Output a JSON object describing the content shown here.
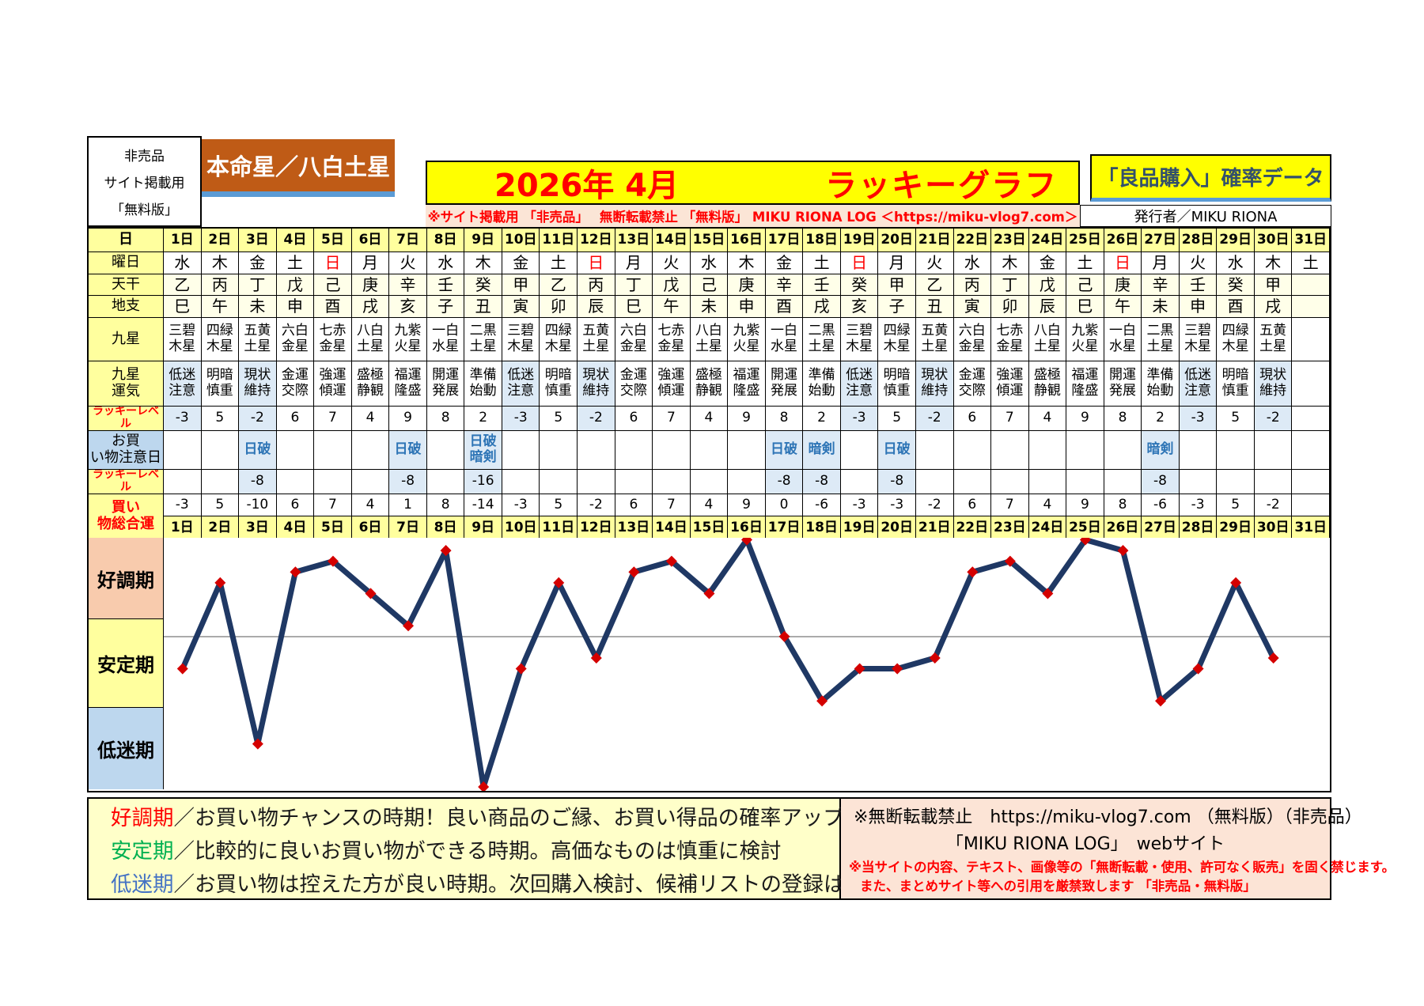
{
  "header": {
    "left_box_lines": [
      "非売品",
      "サイト掲載用",
      "「無料版」"
    ],
    "honmeisei": "本命星／八白土星",
    "title_date": "2026年 4月",
    "title_main": "ラッキーグラフ",
    "right_box": "「良品購入」確率データ",
    "disclaimer": "※サイト掲載用 「非売品」　 無断転載禁止 「無料版」 MIKU RIONA LOG ＜https://miku-vlog7.com＞",
    "publisher": "発行者／MIKU RIONA"
  },
  "table": {
    "row_labels": {
      "day": "日",
      "weekday": "曜日",
      "tenkan": "天干",
      "chishi": "地支",
      "kyusei": "九星",
      "kyusei_unki": "九星運気",
      "lucky_level": "ラッキーレベル",
      "caution": "お買い物注意日",
      "lucky_level2": "ラッキーレベル",
      "total": "買い物総合運"
    },
    "days": [
      "1日",
      "2日",
      "3日",
      "4日",
      "5日",
      "6日",
      "7日",
      "8日",
      "9日",
      "10日",
      "11日",
      "12日",
      "13日",
      "14日",
      "15日",
      "16日",
      "17日",
      "18日",
      "19日",
      "20日",
      "21日",
      "22日",
      "23日",
      "24日",
      "25日",
      "26日",
      "27日",
      "28日",
      "29日",
      "30日",
      "31日"
    ],
    "weekdays": [
      "水",
      "木",
      "金",
      "土",
      "日",
      "月",
      "火",
      "水",
      "木",
      "金",
      "土",
      "日",
      "月",
      "火",
      "水",
      "木",
      "金",
      "土",
      "日",
      "月",
      "火",
      "水",
      "木",
      "金",
      "土",
      "日",
      "月",
      "火",
      "水",
      "木",
      "土"
    ],
    "tenkan": [
      "乙",
      "丙",
      "丁",
      "戊",
      "己",
      "庚",
      "辛",
      "壬",
      "癸",
      "甲",
      "乙",
      "丙",
      "丁",
      "戊",
      "己",
      "庚",
      "辛",
      "壬",
      "癸",
      "甲",
      "乙",
      "丙",
      "丁",
      "戊",
      "己",
      "庚",
      "辛",
      "壬",
      "癸",
      "甲",
      ""
    ],
    "chishi": [
      "巳",
      "午",
      "未",
      "申",
      "酉",
      "戌",
      "亥",
      "子",
      "丑",
      "寅",
      "卯",
      "辰",
      "巳",
      "午",
      "未",
      "申",
      "酉",
      "戌",
      "亥",
      "子",
      "丑",
      "寅",
      "卯",
      "辰",
      "巳",
      "午",
      "未",
      "申",
      "酉",
      "戌",
      ""
    ],
    "kyusei": [
      "三碧木星",
      "四緑木星",
      "五黄土星",
      "六白金星",
      "七赤金星",
      "八白土星",
      "九紫火星",
      "一白水星",
      "二黒土星",
      "三碧木星",
      "四緑木星",
      "五黄土星",
      "六白金星",
      "七赤金星",
      "八白土星",
      "九紫火星",
      "一白水星",
      "二黒土星",
      "三碧木星",
      "四緑木星",
      "五黄土星",
      "六白金星",
      "七赤金星",
      "八白土星",
      "九紫火星",
      "一白水星",
      "二黒土星",
      "三碧木星",
      "四緑木星",
      "五黄土星",
      ""
    ],
    "unki": [
      "低迷注意",
      "明暗慎重",
      "現状維持",
      "金運交際",
      "強運傾運",
      "盛極静観",
      "福運隆盛",
      "開運発展",
      "準備始動",
      "低迷注意",
      "明暗慎重",
      "現状維持",
      "金運交際",
      "強運傾運",
      "盛極静観",
      "福運隆盛",
      "開運発展",
      "準備始動",
      "低迷注意",
      "明暗慎重",
      "現状維持",
      "金運交際",
      "強運傾運",
      "盛極静観",
      "福運隆盛",
      "開運発展",
      "準備始動",
      "低迷注意",
      "明暗慎重",
      "現状維持",
      ""
    ],
    "lucky": [
      -3,
      5,
      -2,
      6,
      7,
      4,
      9,
      8,
      2,
      -3,
      5,
      -2,
      6,
      7,
      4,
      9,
      8,
      2,
      -3,
      5,
      -2,
      6,
      7,
      4,
      9,
      8,
      2,
      -3,
      5,
      -2,
      ""
    ],
    "caution": [
      "",
      "",
      "日破",
      "",
      "",
      "",
      "日破",
      "",
      "日破暗剣",
      "",
      "",
      "",
      "",
      "",
      "",
      "",
      "日破",
      "暗剣",
      "",
      "日破",
      "",
      "",
      "",
      "",
      "",
      "",
      "暗剣",
      "",
      "",
      "",
      ""
    ],
    "penalty": [
      "",
      "",
      -8,
      "",
      "",
      "",
      -8,
      "",
      -16,
      "",
      "",
      "",
      "",
      "",
      "",
      "",
      -8,
      -8,
      "",
      -8,
      "",
      "",
      "",
      "",
      "",
      "",
      -8,
      "",
      "",
      "",
      ""
    ],
    "total": [
      -3,
      5,
      -10,
      6,
      7,
      4,
      1,
      8,
      -14,
      -3,
      5,
      -2,
      6,
      7,
      4,
      9,
      0,
      -6,
      -3,
      -3,
      -2,
      6,
      7,
      4,
      9,
      8,
      -6,
      -3,
      5,
      -2,
      ""
    ]
  },
  "chart_data": {
    "type": "line",
    "series_name": "買い物総合運",
    "x": [
      1,
      2,
      3,
      4,
      5,
      6,
      7,
      8,
      9,
      10,
      11,
      12,
      13,
      14,
      15,
      16,
      17,
      18,
      19,
      20,
      21,
      22,
      23,
      24,
      25,
      26,
      27,
      28,
      29,
      30
    ],
    "values": [
      -3,
      5,
      -10,
      6,
      7,
      4,
      1,
      8,
      -14,
      -3,
      5,
      -2,
      6,
      7,
      4,
      9,
      0,
      -6,
      -3,
      -3,
      -2,
      6,
      7,
      4,
      9,
      8,
      -6,
      -3,
      5,
      -2
    ],
    "ylim": [
      -14.5,
      9.3
    ],
    "zero_gridline": true,
    "zones": [
      {
        "label": "好調期",
        "band": [
          1.5,
          9.3
        ],
        "color": "#F8CBAD"
      },
      {
        "label": "安定期",
        "band": [
          -6.6,
          1.5
        ],
        "color": "#FFFF9E"
      },
      {
        "label": "低迷期",
        "band": [
          -14.5,
          -6.6
        ],
        "color": "#BDD7EE"
      }
    ],
    "line_color": "#1F3864",
    "marker": "diamond",
    "marker_color": "#D40000"
  },
  "footer": {
    "legend": [
      {
        "term": "好調期",
        "color": "#FF0000",
        "text": "／お買い物チャンスの時期！良い商品のご縁、お買い得品の確率アップ"
      },
      {
        "term": "安定期",
        "color": "#00B050",
        "text": "／比較的に良いお買い物ができる時期。高価なものは慎重に検討"
      },
      {
        "term": "低迷期",
        "color": "#4472C4",
        "text": "／お買い物は控えた方が良い時期。次回購入検討、候補リストの登録はOK"
      }
    ],
    "rights": {
      "line1": "※無断転載禁止　https://miku-vlog7.com （無料版）（非売品）",
      "line2": "「MIKU RIONA LOG」　webサイト",
      "line3": "※当サイトの内容、テキスト、画像等の「無断転載・使用、許可なく販売」を固く禁じます。",
      "line4": "また、まとめサイト等への引用を厳禁致します 「非売品・無料版」"
    }
  },
  "colors": {
    "title_bg": "#FFFF00",
    "title_text": "#FF0000",
    "honmei_bg": "#BF5B16",
    "accent_blue_strip": "#5B9BD5",
    "label_yellow": "#FFFF9E",
    "cream": "#FFFFE9",
    "cell_blue": "#DDEAF6",
    "caution_label_blue": "#BDD7EE",
    "caution_text": "#2E75B6",
    "sunday_red": "#FF0000"
  }
}
